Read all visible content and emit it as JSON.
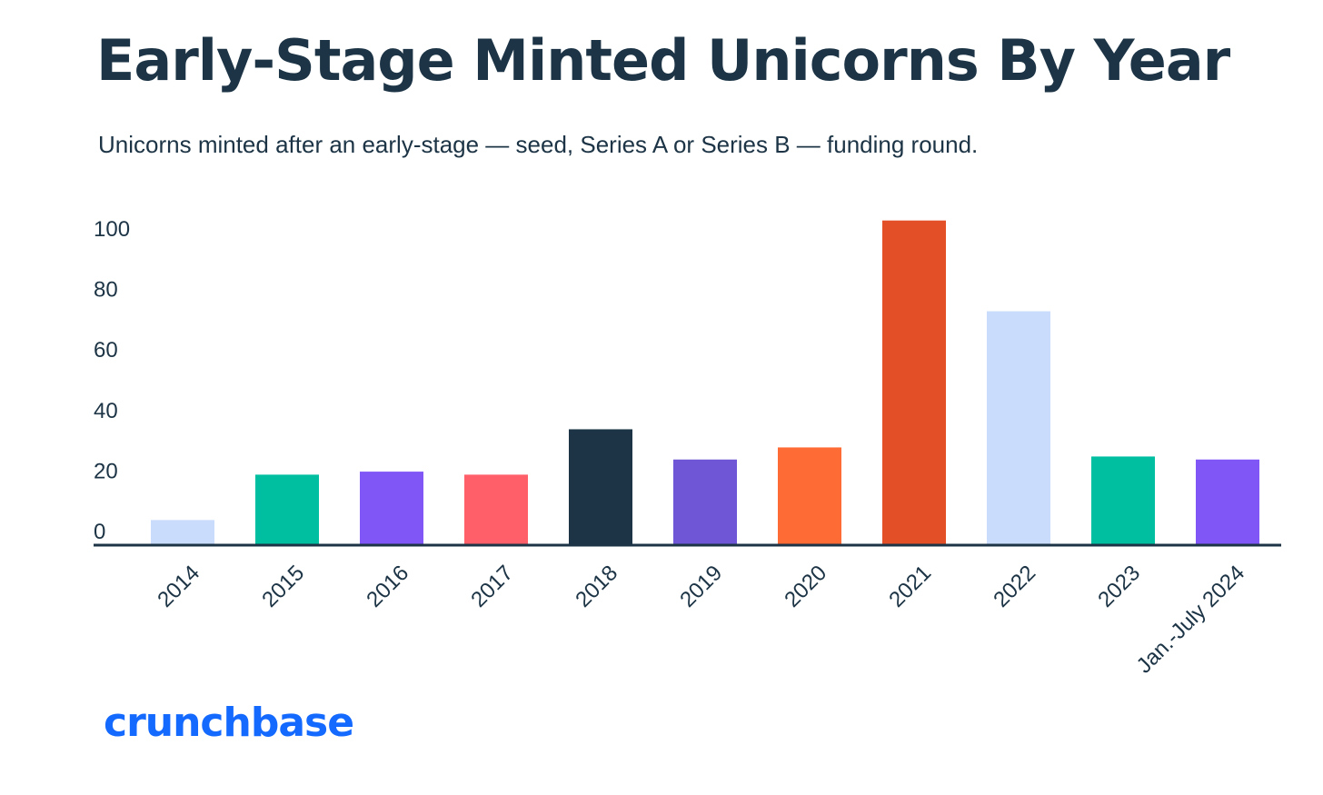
{
  "header": {
    "title": "Early-Stage Minted Unicorns By Year",
    "subtitle": "Unicorns minted after an early-stage — seed, Series A or Series B — funding round."
  },
  "brand": {
    "logo_text": "crunchbase",
    "logo_color": "#146aff"
  },
  "chart_data": {
    "type": "bar",
    "title": "Early-Stage Minted Unicorns By Year",
    "subtitle": "Unicorns minted after an early-stage — seed, Series A or Series B — funding round.",
    "xlabel": "",
    "ylabel": "",
    "ylim": [
      0,
      100
    ],
    "yticks": [
      0,
      20,
      40,
      60,
      80,
      100
    ],
    "grid": false,
    "categories": [
      "2014",
      "2015",
      "2016",
      "2017",
      "2018",
      "2019",
      "2020",
      "2021",
      "2022",
      "2023",
      "Jan.-July 2024"
    ],
    "values": [
      8,
      23,
      24,
      23,
      38,
      28,
      32,
      107,
      77,
      29,
      28
    ],
    "colors": [
      "#c9dcfb",
      "#00bfa0",
      "#8156f7",
      "#ff5f68",
      "#1c3445",
      "#6e56d6",
      "#ff6b35",
      "#e34f26",
      "#c9dcfb",
      "#00bfa0",
      "#8156f7"
    ],
    "axis_color": "#1c3445"
  }
}
